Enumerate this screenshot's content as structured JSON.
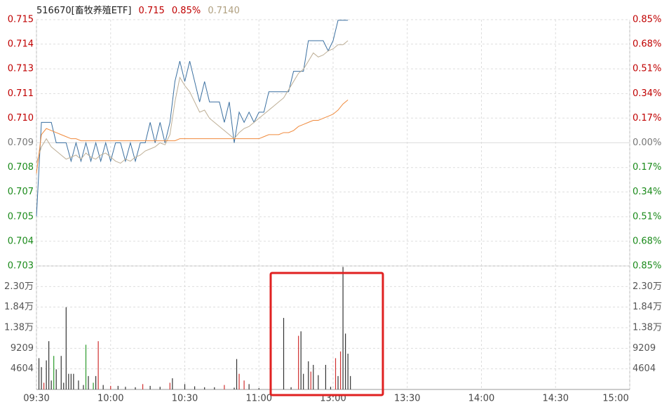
{
  "chart_data": [
    {
      "type": "line",
      "title": "516670[畜牧养殖ETF]",
      "last_price": 0.715,
      "change_pct": {
        "value": 0.85,
        "label": "0.85%"
      },
      "iopv": {
        "value": 0.714,
        "label": "0.7140"
      },
      "up_color": "#c00000",
      "down_color": "#1a8a1a",
      "flat_color": "#777777",
      "grid": true,
      "xlim": [
        0,
        240
      ],
      "x": [
        0,
        2,
        4,
        6,
        8,
        10,
        12,
        14,
        16,
        18,
        20,
        22,
        24,
        26,
        28,
        30,
        32,
        34,
        36,
        38,
        40,
        42,
        44,
        46,
        48,
        50,
        52,
        54,
        56,
        58,
        60,
        62,
        64,
        66,
        68,
        70,
        72,
        74,
        76,
        78,
        80,
        82,
        84,
        86,
        88,
        90,
        92,
        94,
        96,
        98,
        100,
        102,
        104,
        106,
        108,
        110,
        112,
        114,
        116,
        118,
        120,
        122,
        124,
        126
      ],
      "series": [
        {
          "color": "#3a6fa0",
          "values": [
            0.7054,
            0.71,
            0.71,
            0.71,
            0.709,
            0.709,
            0.709,
            0.7081,
            0.709,
            0.7081,
            0.709,
            0.7081,
            0.709,
            0.7081,
            0.709,
            0.7081,
            0.709,
            0.709,
            0.7081,
            0.709,
            0.7081,
            0.709,
            0.709,
            0.71,
            0.709,
            0.71,
            0.709,
            0.71,
            0.712,
            0.713,
            0.712,
            0.713,
            0.712,
            0.711,
            0.712,
            0.711,
            0.711,
            0.711,
            0.71,
            0.711,
            0.709,
            0.7105,
            0.71,
            0.7105,
            0.71,
            0.7105,
            0.7105,
            0.7115,
            0.7115,
            0.7115,
            0.7115,
            0.7115,
            0.7125,
            0.7125,
            0.7125,
            0.714,
            0.714,
            0.714,
            0.714,
            0.7135,
            0.714,
            0.715,
            0.715,
            0.715
          ]
        },
        {
          "color": "#bdae95",
          "values": [
            0.708,
            0.7088,
            0.7092,
            0.7088,
            0.7086,
            0.7084,
            0.7082,
            0.7083,
            0.7084,
            0.7082,
            0.7085,
            0.7083,
            0.7082,
            0.7084,
            0.7085,
            0.7083,
            0.7081,
            0.708,
            0.7082,
            0.7081,
            0.7083,
            0.7084,
            0.7086,
            0.7087,
            0.7088,
            0.709,
            0.7089,
            0.7094,
            0.711,
            0.7122,
            0.7118,
            0.7115,
            0.711,
            0.7105,
            0.7106,
            0.7102,
            0.71,
            0.7098,
            0.7096,
            0.7094,
            0.7092,
            0.7095,
            0.7097,
            0.7098,
            0.71,
            0.7102,
            0.7104,
            0.7106,
            0.7108,
            0.711,
            0.7112,
            0.7116,
            0.712,
            0.7124,
            0.7126,
            0.713,
            0.7134,
            0.7132,
            0.7133,
            0.7135,
            0.7136,
            0.7138,
            0.7138,
            0.714
          ]
        },
        {
          "color": "#f08a3c",
          "values": [
            0.7075,
            0.7094,
            0.7097,
            0.7096,
            0.7095,
            0.7094,
            0.7093,
            0.7092,
            0.7092,
            0.7091,
            0.7091,
            0.7091,
            0.7091,
            0.7091,
            0.7091,
            0.7091,
            0.7091,
            0.7091,
            0.7091,
            0.7091,
            0.7091,
            0.7091,
            0.7091,
            0.7091,
            0.7091,
            0.7091,
            0.7091,
            0.7091,
            0.7091,
            0.7092,
            0.7092,
            0.7092,
            0.7092,
            0.7092,
            0.7092,
            0.7092,
            0.7092,
            0.7092,
            0.7092,
            0.7092,
            0.7092,
            0.7092,
            0.7092,
            0.7092,
            0.7092,
            0.7092,
            0.7093,
            0.7094,
            0.7094,
            0.7094,
            0.7095,
            0.7095,
            0.7096,
            0.7098,
            0.7099,
            0.71,
            0.7101,
            0.7101,
            0.7102,
            0.7103,
            0.7104,
            0.7106,
            0.7109,
            0.7111
          ]
        }
      ],
      "ylim": [
        0.70297,
        0.71503
      ],
      "yticks": [
        {
          "value": 0.71503,
          "label": "0.715"
        },
        {
          "value": 0.71383,
          "label": "0.714"
        },
        {
          "value": 0.71262,
          "label": "0.713"
        },
        {
          "value": 0.71141,
          "label": "0.711"
        },
        {
          "value": 0.71021,
          "label": "0.710"
        },
        {
          "value": 0.709,
          "label": "0.709"
        },
        {
          "value": 0.70779,
          "label": "0.708"
        },
        {
          "value": 0.70659,
          "label": "0.707"
        },
        {
          "value": 0.70538,
          "label": "0.705"
        },
        {
          "value": 0.70418,
          "label": "0.704"
        },
        {
          "value": 0.70297,
          "label": "0.703"
        }
      ],
      "y2lim": [
        -0.85,
        0.85
      ],
      "y2ticks": [
        {
          "value": 0.85,
          "label": "0.85%"
        },
        {
          "value": 0.68,
          "label": "0.68%"
        },
        {
          "value": 0.51,
          "label": "0.51%"
        },
        {
          "value": 0.34,
          "label": "0.34%"
        },
        {
          "value": 0.17,
          "label": "0.17%"
        },
        {
          "value": 0,
          "label": "0.00%"
        },
        {
          "value": -0.17,
          "label": "0.17%"
        },
        {
          "value": -0.34,
          "label": "0.34%"
        },
        {
          "value": -0.51,
          "label": "0.51%"
        },
        {
          "value": -0.68,
          "label": "0.68%"
        },
        {
          "value": -0.85,
          "label": "0.85%"
        }
      ]
    },
    {
      "type": "bar",
      "xlim": [
        0,
        240
      ],
      "xticks": [
        {
          "value": 0,
          "label": "09:30"
        },
        {
          "value": 30,
          "label": "10:00"
        },
        {
          "value": 60,
          "label": "10:30"
        },
        {
          "value": 90,
          "label": "11:00"
        },
        {
          "value": 120,
          "label": "13:00"
        },
        {
          "value": 150,
          "label": "13:30"
        },
        {
          "value": 180,
          "label": "14:00"
        },
        {
          "value": 210,
          "label": "14:30"
        },
        {
          "value": 240,
          "label": "15:00"
        }
      ],
      "x": [
        1,
        2,
        3,
        4,
        5,
        6,
        7,
        8,
        10,
        11,
        12,
        13,
        14,
        15,
        17,
        19,
        20,
        21,
        23,
        24,
        25,
        27,
        30,
        33,
        36,
        40,
        43,
        46,
        50,
        54,
        55,
        60,
        64,
        68,
        72,
        76,
        80,
        81,
        82,
        84,
        86,
        90,
        95,
        100,
        103,
        106,
        107,
        108,
        110,
        111,
        112,
        114,
        117,
        119,
        121,
        122,
        123,
        124,
        125,
        126,
        127
      ],
      "values": [
        7000,
        5000,
        1500,
        6500,
        10800,
        2000,
        7500,
        4500,
        7500,
        1500,
        18400,
        3500,
        3500,
        3500,
        2000,
        1000,
        10000,
        3000,
        1500,
        3000,
        10800,
        1000,
        800,
        800,
        600,
        500,
        1200,
        800,
        600,
        1500,
        2500,
        1200,
        700,
        500,
        500,
        1000,
        400,
        6800,
        3500,
        2000,
        1200,
        300,
        300,
        16000,
        500,
        12000,
        13000,
        3500,
        6300,
        4000,
        5500,
        3200,
        5500,
        600,
        7000,
        3000,
        8500,
        27400,
        12500,
        8000,
        3000
      ],
      "colors": [
        "#333333",
        "#333333",
        "#d03030",
        "#333333",
        "#333333",
        "#333333",
        "#2a9a2a",
        "#333333",
        "#333333",
        "#333333",
        "#333333",
        "#333333",
        "#333333",
        "#333333",
        "#333333",
        "#333333",
        "#2a9a2a",
        "#333333",
        "#2a9a2a",
        "#333333",
        "#d03030",
        "#333333",
        "#d03030",
        "#333333",
        "#333333",
        "#333333",
        "#d03030",
        "#333333",
        "#333333",
        "#d03030",
        "#333333",
        "#333333",
        "#333333",
        "#333333",
        "#333333",
        "#d03030",
        "#333333",
        "#333333",
        "#d03030",
        "#d03030",
        "#333333",
        "#333333",
        "#333333",
        "#333333",
        "#333333",
        "#d03030",
        "#333333",
        "#333333",
        "#333333",
        "#d03030",
        "#333333",
        "#333333",
        "#333333",
        "#333333",
        "#d03030",
        "#333333",
        "#d03030",
        "#333333",
        "#333333",
        "#333333",
        "#333333"
      ],
      "ylim": [
        0,
        27625
      ],
      "yticks": [
        4604,
        9209,
        {
          "value": 13813,
          "label": "1.38万"
        },
        {
          "value": 18417,
          "label": "1.84万"
        },
        {
          "value": 23021,
          "label": "2.30万"
        }
      ]
    }
  ]
}
